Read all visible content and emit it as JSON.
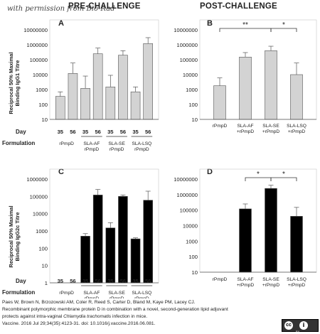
{
  "watermark": "with permission from Bio-Rad",
  "headers": {
    "pre": "PRE-CHALLENGE",
    "post": "POST-CHALLENGE"
  },
  "citation": {
    "line1": "Paes W, Brown N, Brzozowski AM, Coler R, Reed S, Carter D, Bland M, Kaye PM, Lacey CJ.",
    "line2": "Recombinant polymorphic membrane protein D in combination with a novel, second-generation lipid adjuvant",
    "line3a": "protects against intra-vaginal ",
    "line3b": "Chlamydia trachomatis",
    "line3c": " infection in mice.",
    "line4": "Vaccine. 2016 Jul 29;34(35):4123-31. doi: 10.1016/j.vaccine.2016.06.081."
  },
  "license_badge": {
    "left": "cc",
    "right": "i",
    "caption": "BY"
  },
  "chart_data": [
    {
      "panel": "A",
      "type": "bar",
      "scale": "log",
      "ylabel_lines": [
        "Reciprocal 50% Maximal",
        "Binding IgG1 Titre"
      ],
      "yticks": [
        "10",
        "100",
        "1000",
        "10000",
        "100000",
        "1000000",
        "10000000"
      ],
      "bar_color": "#d3d3d3",
      "row_labels": {
        "day": "Day",
        "formulation": "Formulation"
      },
      "days": [
        "35",
        "56",
        "35",
        "56",
        "35",
        "56",
        "35",
        "56"
      ],
      "formulations": [
        [
          "rPmpD"
        ],
        [
          "SLA-AF",
          "rPmpD"
        ],
        [
          "SLA-SE",
          "rPmpD"
        ],
        [
          "SLA-LSQ",
          "rPmpD"
        ]
      ],
      "values": [
        350,
        12000,
        1200,
        250000,
        1500,
        200000,
        700,
        1200000
      ],
      "error_upper": [
        700,
        60000,
        8000,
        600000,
        9000,
        400000,
        1500,
        3000000
      ],
      "significance": []
    },
    {
      "panel": "B",
      "type": "bar",
      "scale": "log",
      "yticks": [
        "10",
        "100",
        "1000",
        "10000",
        "100000",
        "1000000",
        "10000000"
      ],
      "bar_color": "#d3d3d3",
      "formulations": [
        [
          "rPmpD"
        ],
        [
          "SLA-AF",
          "+rPmpD"
        ],
        [
          "SLA-SE",
          "+rPmpD"
        ],
        [
          "SLA-LSQ",
          "+rPmpD"
        ]
      ],
      "values": [
        1800,
        150000,
        400000,
        10000
      ],
      "error_upper": [
        6000,
        300000,
        800000,
        60000
      ],
      "significance": [
        {
          "from": 0,
          "to": 2,
          "label": "**"
        },
        {
          "from": 2,
          "to": 3,
          "label": "*"
        }
      ]
    },
    {
      "panel": "C",
      "type": "bar",
      "scale": "log",
      "ylabel_lines": [
        "Reciprocal 50% Maximal",
        "Binding IgG2c Titre"
      ],
      "yticks": [
        "1",
        "10",
        "100",
        "1000",
        "10000",
        "100000",
        "1000000"
      ],
      "bar_color": "#000000",
      "row_labels": {
        "day": "Day",
        "formulation": "Formulation"
      },
      "days": [
        "35",
        "56",
        "35",
        "56",
        "35",
        "56",
        "35",
        "56"
      ],
      "formulations": [
        [
          "rPmpD"
        ],
        [
          "SLA-AF",
          "rPmpD"
        ],
        [
          "SLA-SE",
          "rPmpD"
        ],
        [
          "SLA-LSQ",
          "rPmpD"
        ]
      ],
      "values": [
        null,
        null,
        500,
        120000,
        1500,
        100000,
        350,
        60000
      ],
      "error_upper": [
        null,
        null,
        700,
        250000,
        3000,
        120000,
        400,
        200000
      ],
      "significance": []
    },
    {
      "panel": "D",
      "type": "bar",
      "scale": "log",
      "yticks": [
        "10",
        "100",
        "1000",
        "10000",
        "100000",
        "1000000",
        "10000000"
      ],
      "bar_color": "#000000",
      "formulations": [
        [
          "rPmpD"
        ],
        [
          "SLA-AF",
          "+rPmpD"
        ],
        [
          "SLA-SE",
          "+rPmpD"
        ],
        [
          "SLA-LSQ",
          "+rPmpD"
        ]
      ],
      "values": [
        null,
        120000,
        2500000,
        40000
      ],
      "error_upper": [
        null,
        250000,
        4000000,
        150000
      ],
      "significance": [
        {
          "from": 1,
          "to": 2,
          "label": "*"
        },
        {
          "from": 2,
          "to": 3,
          "label": "*"
        }
      ]
    }
  ]
}
